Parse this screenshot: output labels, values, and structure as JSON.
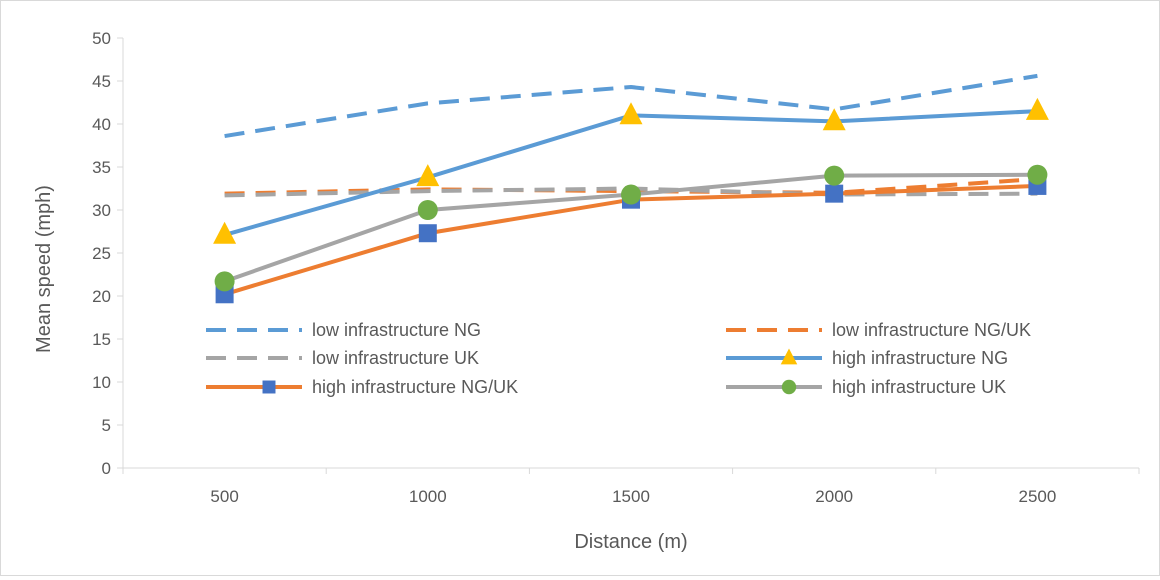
{
  "chart_data": {
    "type": "line",
    "title": "",
    "xlabel": "Distance (m)",
    "ylabel": "Mean speed (mph)",
    "categories": [
      "500",
      "1000",
      "1500",
      "2000",
      "2500"
    ],
    "ylim": [
      0,
      50
    ],
    "yticks": [
      0,
      5,
      10,
      15,
      20,
      25,
      30,
      35,
      40,
      45,
      50
    ],
    "grid": "none",
    "legend_position": "inside-bottom",
    "series": [
      {
        "name": "low infrastructure NG",
        "values": [
          38.6,
          42.4,
          44.3,
          41.7,
          45.6
        ],
        "color": "#5b9bd5",
        "line": "dashed",
        "marker": "none"
      },
      {
        "name": "low infrastructure NG/UK",
        "values": [
          31.9,
          32.4,
          32.2,
          32.0,
          33.6
        ],
        "color": "#ed7d31",
        "line": "dashed",
        "marker": "none"
      },
      {
        "name": "low infrastructure UK",
        "values": [
          31.7,
          32.2,
          32.5,
          31.8,
          31.9
        ],
        "color": "#a5a5a5",
        "line": "dashed",
        "marker": "none"
      },
      {
        "name": "high infrastructure NG",
        "values": [
          27.1,
          33.8,
          41.0,
          40.3,
          41.5
        ],
        "color": "#5b9bd5",
        "line": "solid",
        "marker": "triangle",
        "marker_color": "#ffc000"
      },
      {
        "name": "high infrastructure NG/UK",
        "values": [
          20.2,
          27.3,
          31.2,
          31.9,
          32.8
        ],
        "color": "#ed7d31",
        "line": "solid",
        "marker": "square",
        "marker_color": "#4472c4"
      },
      {
        "name": "high infrastructure UK",
        "values": [
          21.7,
          30.0,
          31.8,
          34.0,
          34.1
        ],
        "color": "#a5a5a5",
        "line": "solid",
        "marker": "circle",
        "marker_color": "#70ad47"
      }
    ]
  }
}
